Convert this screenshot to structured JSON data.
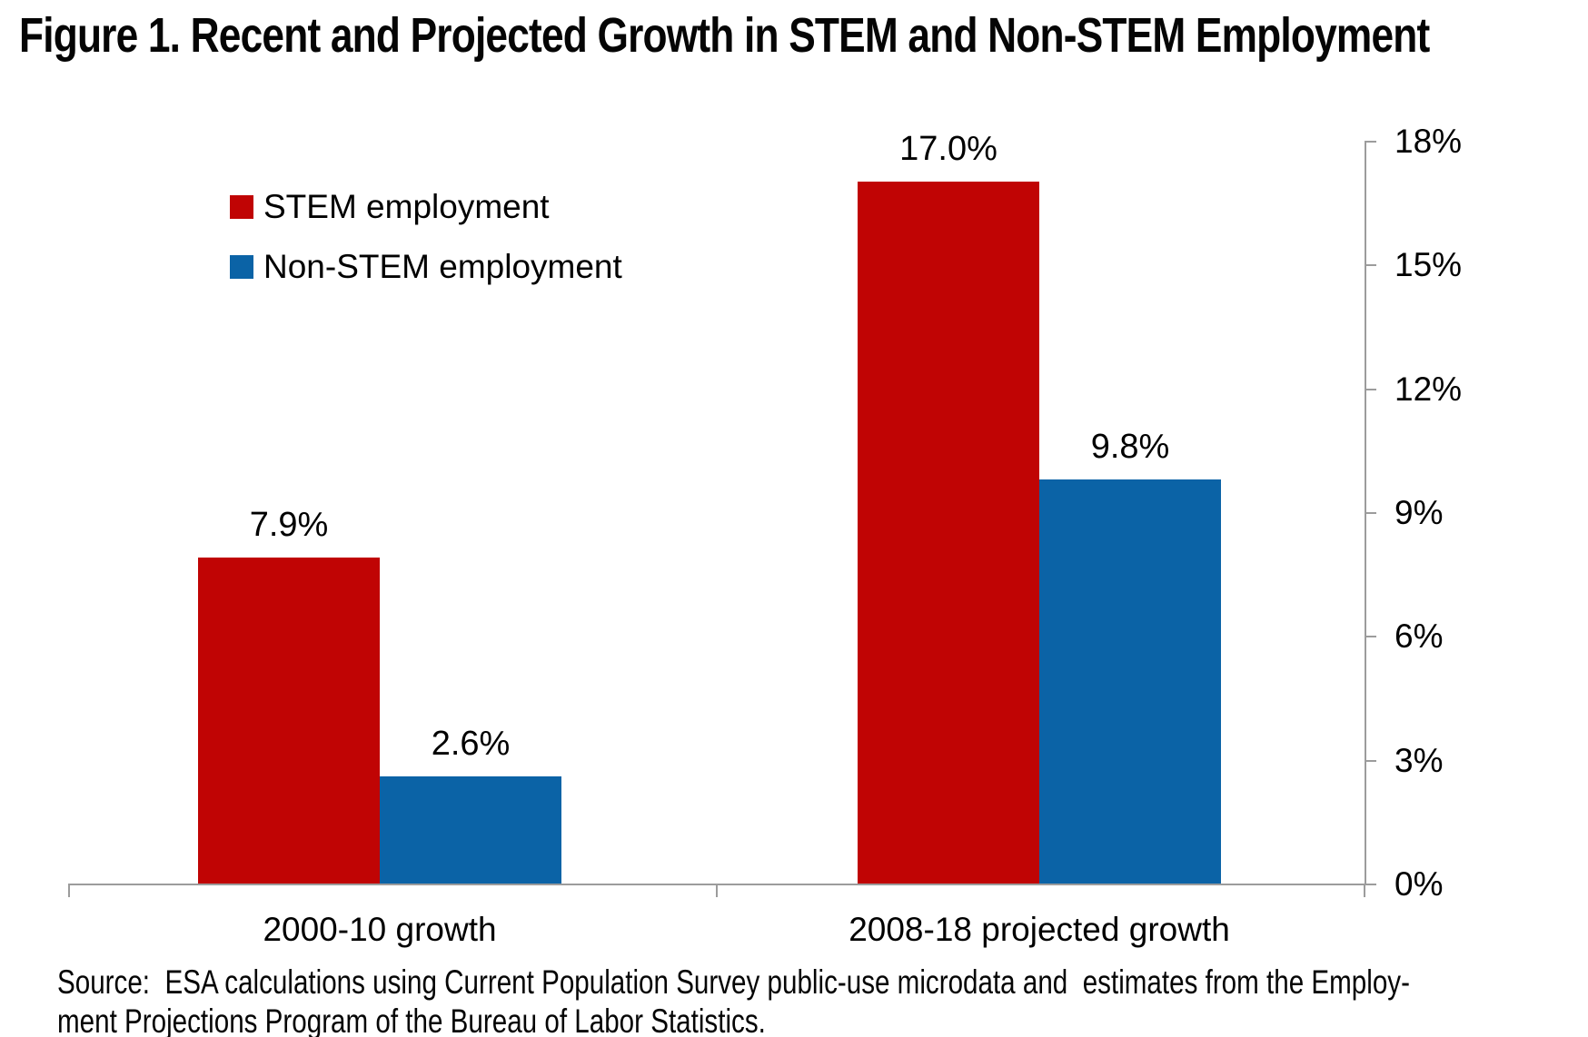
{
  "title": "Figure 1. Recent and Projected Growth in STEM and Non-STEM Employment",
  "legend": [
    {
      "label": "STEM employment",
      "color": "#c00404"
    },
    {
      "label": "Non-STEM employment",
      "color": "#0b63a6"
    }
  ],
  "source_lines": [
    "Source:  ESA calculations using Current Population Survey public-use microdata and  estimates from the Employ-",
    "ment Projections Program of the Bureau of Labor Statistics."
  ],
  "chart_data": {
    "type": "bar",
    "categories": [
      "2000-10 growth",
      "2008-18 projected growth"
    ],
    "series": [
      {
        "name": "STEM employment",
        "color": "#c00404",
        "values": [
          7.9,
          17.0
        ],
        "labels": [
          "7.9%",
          "17.0%"
        ]
      },
      {
        "name": "Non-STEM employment",
        "color": "#0b63a6",
        "values": [
          2.6,
          9.8
        ],
        "labels": [
          "2.6%",
          "9.8%"
        ]
      }
    ],
    "ylim": [
      0,
      18
    ],
    "y_ticks": [
      "0%",
      "3%",
      "6%",
      "9%",
      "12%",
      "15%",
      "18%"
    ],
    "y_axis_side": "right",
    "grid": false,
    "legend_position": "top-left",
    "axis_color": "#9c9c9c"
  }
}
